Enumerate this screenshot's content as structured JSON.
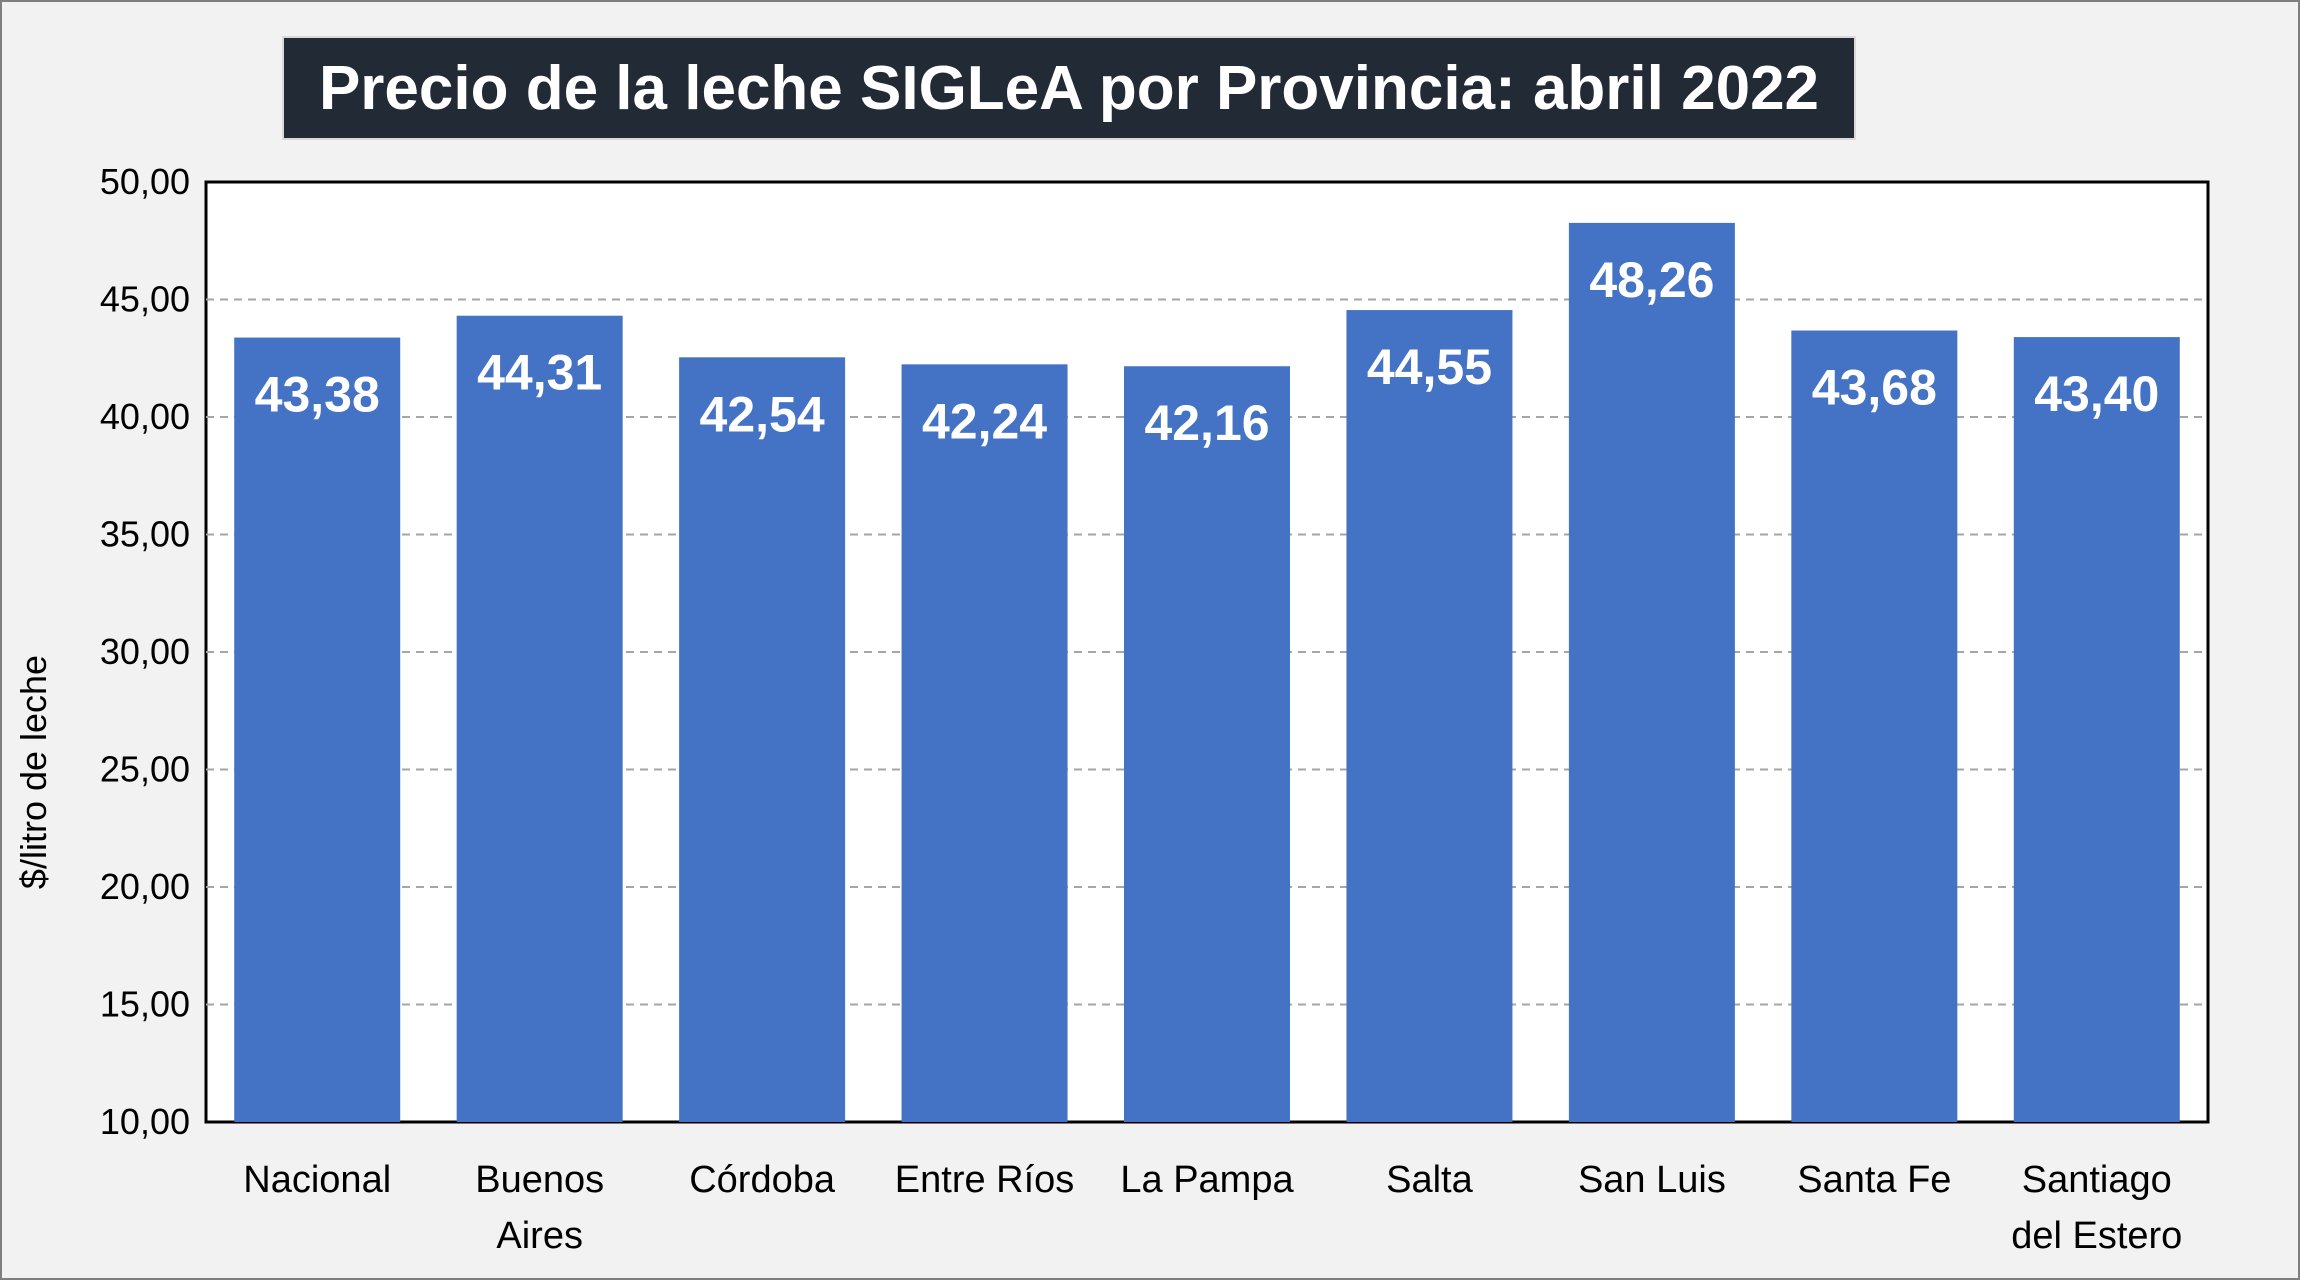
{
  "chart_data": {
    "type": "bar",
    "title": "Precio de la leche SIGLeA por Provincia: abril 2022",
    "ylabel": "$/litro de leche",
    "xlabel": "",
    "categories": [
      [
        "Nacional"
      ],
      [
        "Buenos",
        "Aires"
      ],
      [
        "Córdoba"
      ],
      [
        "Entre Ríos"
      ],
      [
        "La Pampa"
      ],
      [
        "Salta"
      ],
      [
        "San Luis"
      ],
      [
        "Santa Fe"
      ],
      [
        "Santiago",
        "del Estero"
      ]
    ],
    "values": [
      43.38,
      44.31,
      42.54,
      42.24,
      42.16,
      44.55,
      48.26,
      43.68,
      43.4
    ],
    "value_labels": [
      "43,38",
      "44,31",
      "42,54",
      "42,24",
      "42,16",
      "44,55",
      "48,26",
      "43,68",
      "43,40"
    ],
    "ylim": [
      10,
      50
    ],
    "yticks": [
      10,
      15,
      20,
      25,
      30,
      35,
      40,
      45,
      50
    ],
    "ytick_labels": [
      "10,00",
      "15,00",
      "20,00",
      "25,00",
      "30,00",
      "35,00",
      "40,00",
      "45,00",
      "50,00"
    ],
    "grid": true,
    "legend": "none",
    "colors": {
      "bar": "#4472c4",
      "grid": "#a6a6a6",
      "title_bg": "#222a35",
      "title_text": "#ffffff"
    }
  }
}
